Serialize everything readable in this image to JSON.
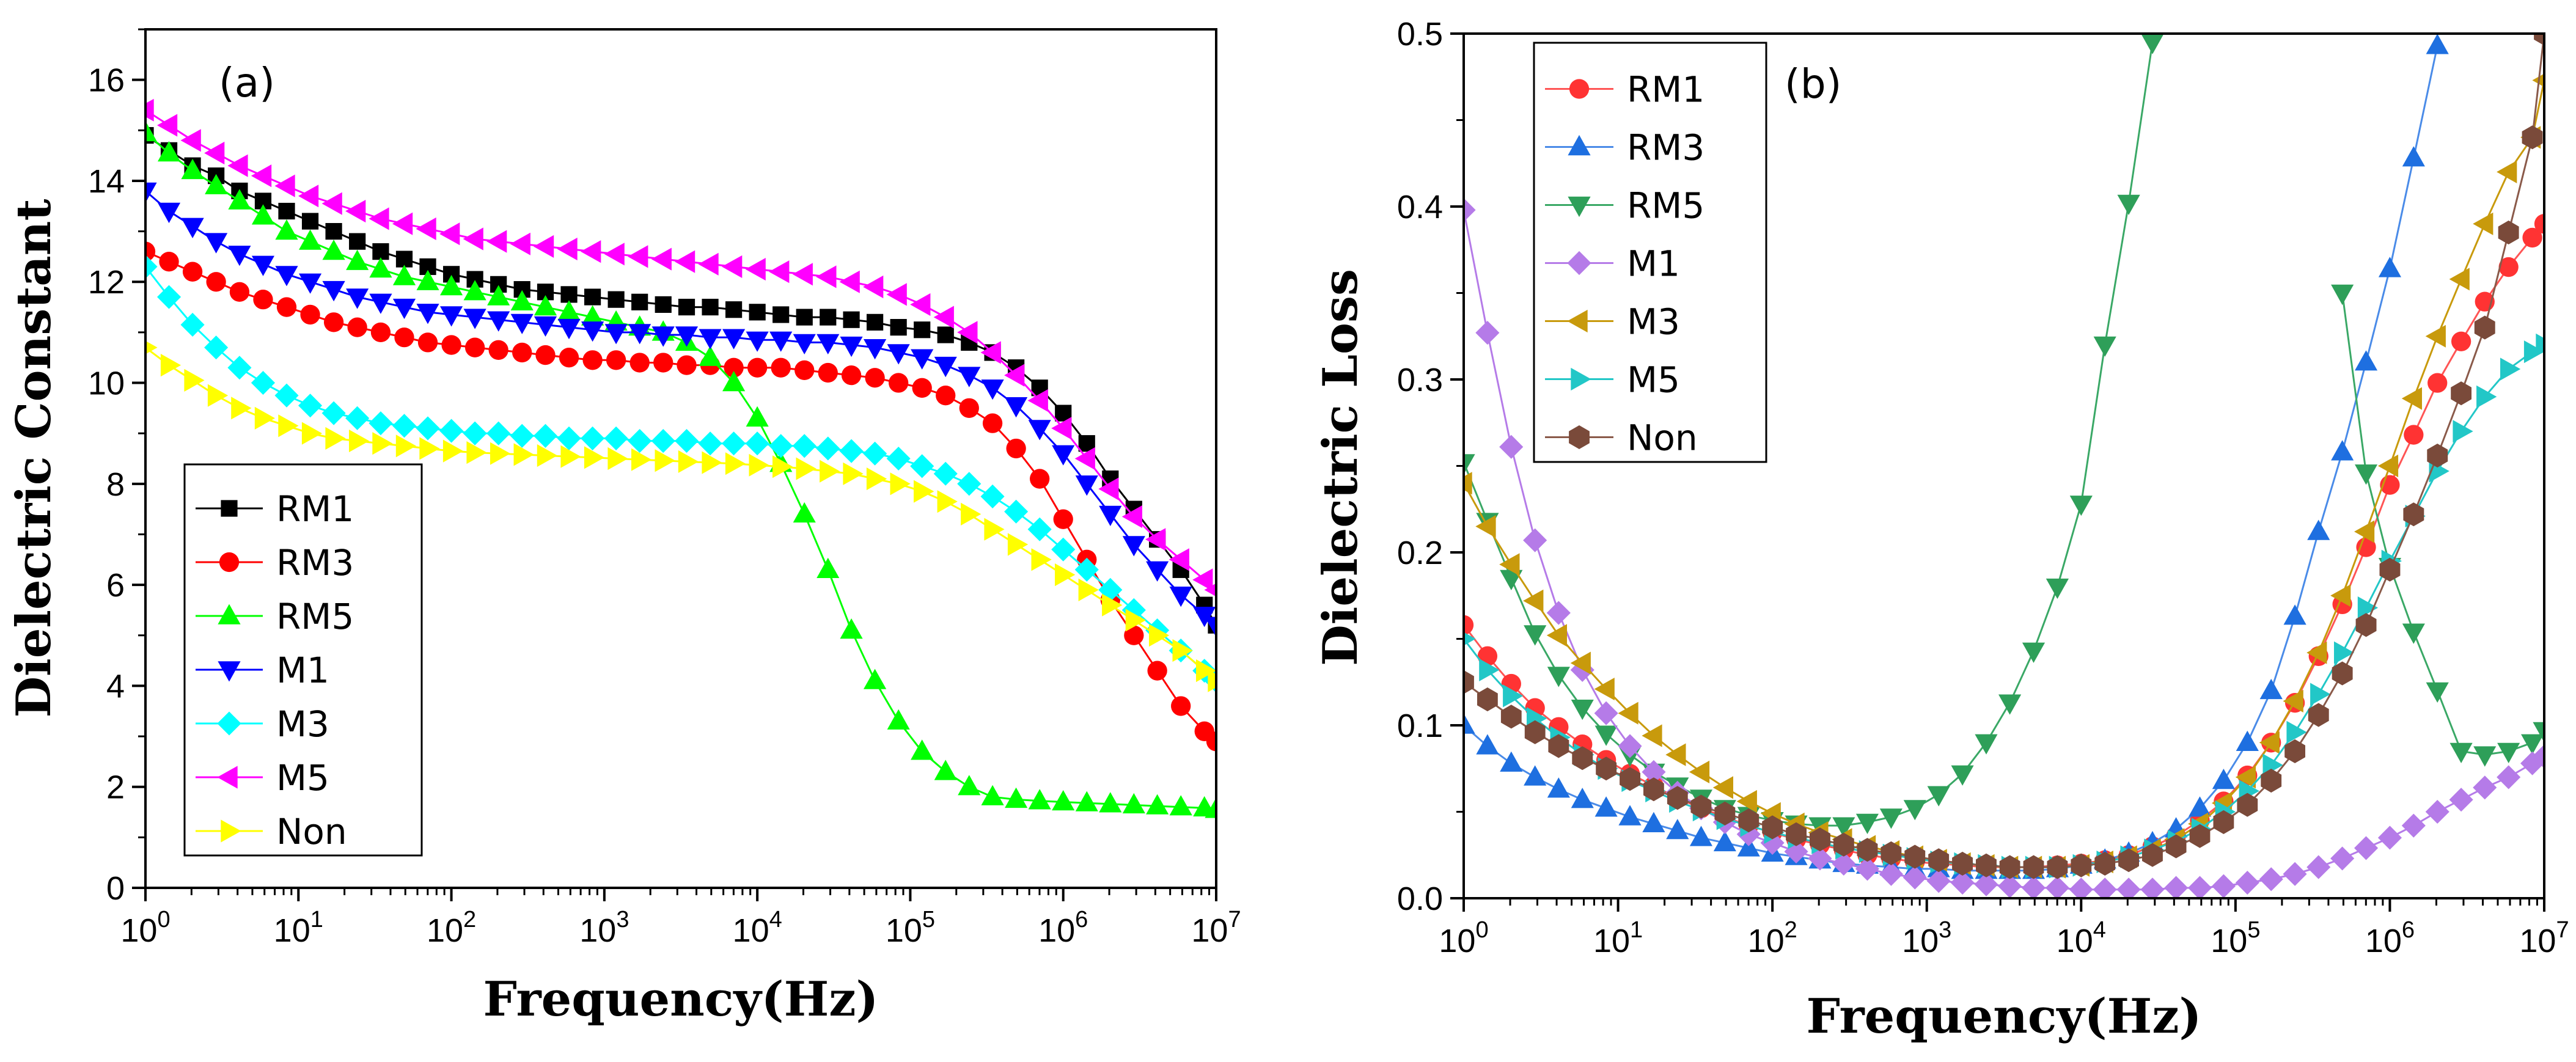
{
  "chart_data": [
    {
      "type": "scatter",
      "panel_label": "(a)",
      "xlabel": "Frequency(Hz)",
      "ylabel": "Dielectric Constant",
      "xscale": "log",
      "xlim": [
        1,
        10000000
      ],
      "ylim": [
        0,
        17
      ],
      "x_ticks": [
        {
          "base": "10",
          "exp": "0"
        },
        {
          "base": "10",
          "exp": "1"
        },
        {
          "base": "10",
          "exp": "2"
        },
        {
          "base": "10",
          "exp": "3"
        },
        {
          "base": "10",
          "exp": "4"
        },
        {
          "base": "10",
          "exp": "5"
        },
        {
          "base": "10",
          "exp": "6"
        },
        {
          "base": "10",
          "exp": "7"
        }
      ],
      "y_ticks": [
        "0",
        "2",
        "4",
        "6",
        "8",
        "10",
        "12",
        "14",
        "16"
      ],
      "legend_position": "bottom-left",
      "x_decades": [
        0,
        0.154,
        0.308,
        0.462,
        0.615,
        0.769,
        0.923,
        1.077,
        1.231,
        1.385,
        1.538,
        1.692,
        1.846,
        2.0,
        2.154,
        2.308,
        2.462,
        2.615,
        2.769,
        2.923,
        3.077,
        3.231,
        3.385,
        3.538,
        3.692,
        3.846,
        4.0,
        4.154,
        4.308,
        4.462,
        4.615,
        4.769,
        4.923,
        5.077,
        5.231,
        5.385,
        5.538,
        5.692,
        5.846,
        6.0,
        6.154,
        6.308,
        6.462,
        6.615,
        6.769,
        6.923,
        7.0
      ],
      "series": [
        {
          "name": "RM1",
          "color": "#000000",
          "marker": "square",
          "values": [
            14.9,
            14.6,
            14.3,
            14.1,
            13.8,
            13.6,
            13.4,
            13.2,
            13.0,
            12.8,
            12.6,
            12.45,
            12.3,
            12.15,
            12.05,
            11.95,
            11.85,
            11.8,
            11.75,
            11.7,
            11.65,
            11.6,
            11.55,
            11.5,
            11.5,
            11.45,
            11.4,
            11.35,
            11.3,
            11.3,
            11.25,
            11.2,
            11.1,
            11.05,
            10.95,
            10.8,
            10.6,
            10.3,
            9.9,
            9.4,
            8.8,
            8.1,
            7.5,
            6.9,
            6.3,
            5.6,
            5.2
          ]
        },
        {
          "name": "RM3",
          "color": "#ff0000",
          "marker": "circle",
          "values": [
            12.6,
            12.4,
            12.2,
            12.0,
            11.8,
            11.65,
            11.5,
            11.35,
            11.2,
            11.1,
            11.0,
            10.9,
            10.8,
            10.75,
            10.7,
            10.65,
            10.6,
            10.55,
            10.5,
            10.45,
            10.45,
            10.4,
            10.4,
            10.35,
            10.35,
            10.3,
            10.3,
            10.3,
            10.25,
            10.2,
            10.15,
            10.1,
            10.0,
            9.9,
            9.75,
            9.5,
            9.2,
            8.7,
            8.1,
            7.3,
            6.5,
            5.7,
            5.0,
            4.3,
            3.6,
            3.1,
            2.9
          ]
        },
        {
          "name": "RM5",
          "color": "#00ff00",
          "marker": "triangle-up",
          "values": [
            14.95,
            14.55,
            14.2,
            13.9,
            13.6,
            13.3,
            13.0,
            12.8,
            12.6,
            12.4,
            12.25,
            12.1,
            12.0,
            11.9,
            11.8,
            11.7,
            11.6,
            11.5,
            11.4,
            11.3,
            11.2,
            11.1,
            11.0,
            10.8,
            10.5,
            10.0,
            9.3,
            8.4,
            7.4,
            6.3,
            5.1,
            4.1,
            3.3,
            2.7,
            2.3,
            2.0,
            1.8,
            1.75,
            1.72,
            1.7,
            1.68,
            1.66,
            1.64,
            1.62,
            1.6,
            1.58,
            1.55
          ]
        },
        {
          "name": "M1",
          "color": "#0000ff",
          "marker": "triangle-down",
          "values": [
            13.8,
            13.4,
            13.1,
            12.8,
            12.55,
            12.35,
            12.15,
            12.0,
            11.85,
            11.7,
            11.6,
            11.5,
            11.4,
            11.35,
            11.3,
            11.25,
            11.2,
            11.15,
            11.1,
            11.05,
            11.0,
            11.0,
            10.95,
            10.95,
            10.9,
            10.9,
            10.85,
            10.85,
            10.8,
            10.8,
            10.75,
            10.7,
            10.6,
            10.5,
            10.35,
            10.15,
            9.9,
            9.55,
            9.1,
            8.6,
            8.0,
            7.4,
            6.8,
            6.3,
            5.8,
            5.4,
            5.2
          ]
        },
        {
          "name": "M3",
          "color": "#00ffff",
          "marker": "diamond",
          "values": [
            12.3,
            11.7,
            11.15,
            10.7,
            10.3,
            10.0,
            9.75,
            9.55,
            9.4,
            9.3,
            9.2,
            9.15,
            9.1,
            9.05,
            9.0,
            9.0,
            8.95,
            8.95,
            8.9,
            8.9,
            8.9,
            8.85,
            8.85,
            8.85,
            8.8,
            8.8,
            8.8,
            8.75,
            8.75,
            8.7,
            8.65,
            8.6,
            8.5,
            8.35,
            8.2,
            8.0,
            7.75,
            7.45,
            7.1,
            6.7,
            6.3,
            5.9,
            5.5,
            5.1,
            4.7,
            4.3,
            4.1
          ]
        },
        {
          "name": "M5",
          "color": "#ff00ff",
          "marker": "triangle-left",
          "values": [
            15.4,
            15.1,
            14.8,
            14.55,
            14.3,
            14.1,
            13.9,
            13.7,
            13.55,
            13.4,
            13.25,
            13.15,
            13.05,
            12.95,
            12.85,
            12.8,
            12.75,
            12.7,
            12.65,
            12.6,
            12.55,
            12.5,
            12.45,
            12.4,
            12.35,
            12.3,
            12.25,
            12.2,
            12.15,
            12.1,
            12.0,
            11.9,
            11.75,
            11.55,
            11.3,
            11.0,
            10.6,
            10.15,
            9.65,
            9.1,
            8.5,
            7.9,
            7.35,
            6.9,
            6.5,
            6.1,
            5.9
          ]
        },
        {
          "name": "Non",
          "color": "#ffff00",
          "marker": "triangle-right",
          "values": [
            10.7,
            10.35,
            10.05,
            9.75,
            9.5,
            9.3,
            9.15,
            9.0,
            8.9,
            8.85,
            8.8,
            8.75,
            8.7,
            8.65,
            8.62,
            8.6,
            8.58,
            8.56,
            8.54,
            8.52,
            8.5,
            8.48,
            8.46,
            8.44,
            8.42,
            8.4,
            8.37,
            8.34,
            8.3,
            8.25,
            8.2,
            8.1,
            8.0,
            7.85,
            7.65,
            7.4,
            7.1,
            6.8,
            6.5,
            6.2,
            5.9,
            5.6,
            5.3,
            5.0,
            4.7,
            4.3,
            4.1
          ]
        }
      ]
    },
    {
      "type": "scatter",
      "panel_label": "(b)",
      "xlabel": "Frequency(Hz)",
      "ylabel": "Dielectric Loss",
      "xscale": "log",
      "xlim": [
        1,
        10000000
      ],
      "ylim": [
        0,
        0.5
      ],
      "x_ticks": [
        {
          "base": "10",
          "exp": "0"
        },
        {
          "base": "10",
          "exp": "1"
        },
        {
          "base": "10",
          "exp": "2"
        },
        {
          "base": "10",
          "exp": "3"
        },
        {
          "base": "10",
          "exp": "4"
        },
        {
          "base": "10",
          "exp": "5"
        },
        {
          "base": "10",
          "exp": "6"
        },
        {
          "base": "10",
          "exp": "7"
        }
      ],
      "y_ticks": [
        "0.0",
        "0.1",
        "0.2",
        "0.3",
        "0.4",
        "0.5"
      ],
      "legend_position": "top-left",
      "x_decades": [
        0,
        0.154,
        0.308,
        0.462,
        0.615,
        0.769,
        0.923,
        1.077,
        1.231,
        1.385,
        1.538,
        1.692,
        1.846,
        2.0,
        2.154,
        2.308,
        2.462,
        2.615,
        2.769,
        2.923,
        3.077,
        3.231,
        3.385,
        3.538,
        3.692,
        3.846,
        4.0,
        4.154,
        4.308,
        4.462,
        4.615,
        4.769,
        4.923,
        5.077,
        5.231,
        5.385,
        5.538,
        5.692,
        5.846,
        6.0,
        6.154,
        6.308,
        6.462,
        6.615,
        6.769,
        6.923,
        7.0
      ],
      "series": [
        {
          "name": "RM1",
          "color": "#ff3333",
          "line_color": "#ff5555",
          "marker": "circle",
          "values": [
            0.158,
            0.14,
            0.124,
            0.11,
            0.099,
            0.089,
            0.08,
            0.072,
            0.065,
            0.058,
            0.052,
            0.047,
            0.042,
            0.038,
            0.034,
            0.031,
            0.028,
            0.025,
            0.023,
            0.021,
            0.02,
            0.019,
            0.018,
            0.018,
            0.018,
            0.019,
            0.02,
            0.022,
            0.025,
            0.03,
            0.036,
            0.045,
            0.056,
            0.071,
            0.09,
            0.113,
            0.14,
            0.17,
            0.203,
            0.239,
            0.268,
            0.298,
            0.322,
            0.345,
            0.365,
            0.382,
            0.39
          ]
        },
        {
          "name": "RM3",
          "color": "#1e6fe0",
          "line_color": "#4a8be8",
          "marker": "triangle-up",
          "values": [
            0.1,
            0.088,
            0.078,
            0.07,
            0.063,
            0.057,
            0.052,
            0.047,
            0.043,
            0.039,
            0.035,
            0.032,
            0.029,
            0.026,
            0.024,
            0.022,
            0.02,
            0.019,
            0.018,
            0.017,
            0.017,
            0.016,
            0.016,
            0.016,
            0.016,
            0.017,
            0.019,
            0.022,
            0.026,
            0.032,
            0.04,
            0.052,
            0.068,
            0.09,
            0.12,
            0.163,
            0.212,
            0.258,
            0.31,
            0.364,
            0.428,
            0.493
          ]
        },
        {
          "name": "RM5",
          "color": "#2e9f59",
          "line_color": "#3aa866",
          "marker": "triangle-down",
          "values": [
            0.252,
            0.218,
            0.185,
            0.153,
            0.129,
            0.11,
            0.095,
            0.083,
            0.073,
            0.065,
            0.058,
            0.052,
            0.048,
            0.045,
            0.043,
            0.042,
            0.042,
            0.044,
            0.047,
            0.052,
            0.06,
            0.072,
            0.09,
            0.113,
            0.143,
            0.18,
            0.228,
            0.32,
            0.402,
            0.495,
            null,
            null,
            null,
            null,
            null,
            null,
            null,
            0.35,
            0.246,
            0.192,
            0.154,
            0.12,
            0.085,
            0.083,
            0.085,
            0.09,
            0.097
          ]
        },
        {
          "name": "M1",
          "color": "#b57be8",
          "line_color": "#b57be8",
          "marker": "diamond",
          "values": [
            0.398,
            0.327,
            0.261,
            0.207,
            0.165,
            0.132,
            0.107,
            0.088,
            0.073,
            0.061,
            0.052,
            0.044,
            0.037,
            0.032,
            0.027,
            0.023,
            0.02,
            0.017,
            0.014,
            0.012,
            0.01,
            0.009,
            0.008,
            0.007,
            0.006,
            0.006,
            0.005,
            0.005,
            0.005,
            0.005,
            0.006,
            0.006,
            0.007,
            0.009,
            0.011,
            0.014,
            0.018,
            0.023,
            0.029,
            0.035,
            0.042,
            0.05,
            0.057,
            0.064,
            0.07,
            0.078,
            0.082
          ]
        },
        {
          "name": "M3",
          "color": "#c89a0c",
          "line_color": "#c89a0c",
          "marker": "triangle-left",
          "values": [
            0.24,
            0.215,
            0.193,
            0.172,
            0.152,
            0.136,
            0.121,
            0.107,
            0.094,
            0.083,
            0.073,
            0.064,
            0.056,
            0.049,
            0.043,
            0.038,
            0.034,
            0.03,
            0.027,
            0.024,
            0.022,
            0.02,
            0.019,
            0.018,
            0.018,
            0.018,
            0.019,
            0.021,
            0.024,
            0.028,
            0.034,
            0.043,
            0.055,
            0.07,
            0.09,
            0.114,
            0.142,
            0.175,
            0.212,
            0.25,
            0.289,
            0.325,
            0.358,
            0.39,
            0.42,
            0.44,
            0.473
          ]
        },
        {
          "name": "M5",
          "color": "#22c7c7",
          "line_color": "#22c7c7",
          "marker": "triangle-right",
          "values": [
            0.15,
            0.132,
            0.117,
            0.104,
            0.093,
            0.083,
            0.075,
            0.068,
            0.062,
            0.056,
            0.051,
            0.046,
            0.042,
            0.038,
            0.035,
            0.032,
            0.029,
            0.027,
            0.025,
            0.023,
            0.021,
            0.02,
            0.019,
            0.018,
            0.018,
            0.018,
            0.019,
            0.021,
            0.024,
            0.028,
            0.033,
            0.04,
            0.05,
            0.062,
            0.077,
            0.096,
            0.118,
            0.142,
            0.168,
            0.195,
            0.221,
            0.247,
            0.27,
            0.29,
            0.306,
            0.316,
            0.32
          ]
        },
        {
          "name": "Non",
          "color": "#7a4a3a",
          "line_color": "#8a5a4a",
          "marker": "hexagon",
          "values": [
            0.125,
            0.115,
            0.105,
            0.096,
            0.088,
            0.081,
            0.075,
            0.069,
            0.063,
            0.058,
            0.053,
            0.049,
            0.045,
            0.041,
            0.037,
            0.034,
            0.031,
            0.028,
            0.026,
            0.024,
            0.022,
            0.02,
            0.019,
            0.018,
            0.018,
            0.018,
            0.019,
            0.02,
            0.022,
            0.025,
            0.03,
            0.036,
            0.044,
            0.054,
            0.068,
            0.085,
            0.106,
            0.13,
            0.158,
            0.19,
            0.222,
            0.256,
            0.292,
            0.33,
            0.385,
            0.44,
            0.5
          ]
        }
      ]
    }
  ]
}
